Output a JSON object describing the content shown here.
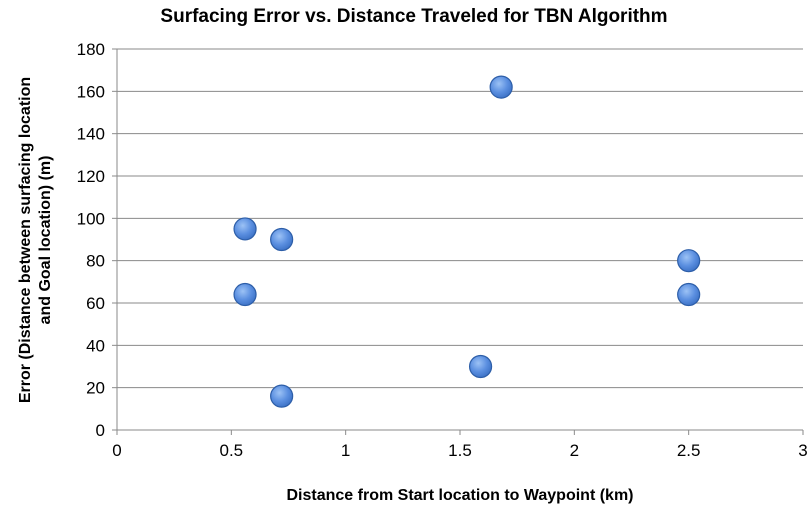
{
  "chart_data": {
    "type": "scatter",
    "title": "Surfacing Error vs. Distance Traveled for TBN Algorithm",
    "xlabel": "Distance from Start location to Waypoint (km)",
    "ylabel_lines": [
      "Error (Distance between surfacing location",
      "and Goal location) (m)"
    ],
    "xlim": [
      0,
      3
    ],
    "ylim": [
      0,
      180
    ],
    "x_ticks": [
      0,
      0.5,
      1,
      1.5,
      2,
      2.5,
      3
    ],
    "x_tick_labels": [
      "0",
      "0.5",
      "1",
      "1.5",
      "2",
      "2.5",
      "3"
    ],
    "y_ticks": [
      0,
      20,
      40,
      60,
      80,
      100,
      120,
      140,
      160,
      180
    ],
    "y_tick_labels": [
      "0",
      "20",
      "40",
      "60",
      "80",
      "100",
      "120",
      "140",
      "160",
      "180"
    ],
    "grid": "horizontal",
    "marker_color": "#5b8fe0",
    "marker_edge_color": "#2d5ea8",
    "points": [
      {
        "x": 0.56,
        "y": 95
      },
      {
        "x": 0.56,
        "y": 64
      },
      {
        "x": 0.72,
        "y": 90
      },
      {
        "x": 0.72,
        "y": 16
      },
      {
        "x": 1.59,
        "y": 30
      },
      {
        "x": 1.68,
        "y": 162
      },
      {
        "x": 2.5,
        "y": 80
      },
      {
        "x": 2.5,
        "y": 64
      }
    ]
  }
}
